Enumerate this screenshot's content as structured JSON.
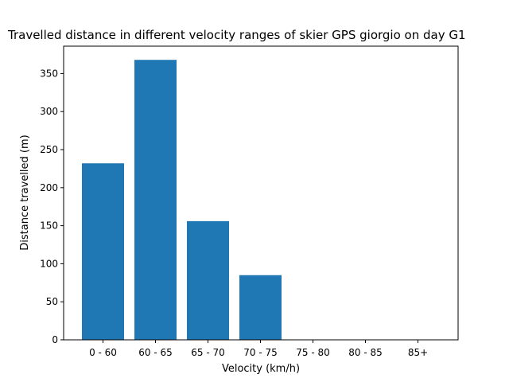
{
  "chart_data": {
    "type": "bar",
    "title": "Travelled distance in different velocity ranges of skier GPS giorgio on day G1",
    "xlabel": "Velocity (km/h)",
    "ylabel": "Distance travelled (m)",
    "categories": [
      "0 - 60",
      "60 - 65",
      "65 - 70",
      "70 - 75",
      "75 - 80",
      "80 - 85",
      "85+"
    ],
    "values": [
      232,
      368,
      156,
      85,
      0,
      0,
      0
    ],
    "ylim": [
      0,
      386
    ],
    "yticks": [
      0,
      50,
      100,
      150,
      200,
      250,
      300,
      350
    ],
    "bar_color": "#1f77b4",
    "grid": false,
    "legend": "none"
  }
}
